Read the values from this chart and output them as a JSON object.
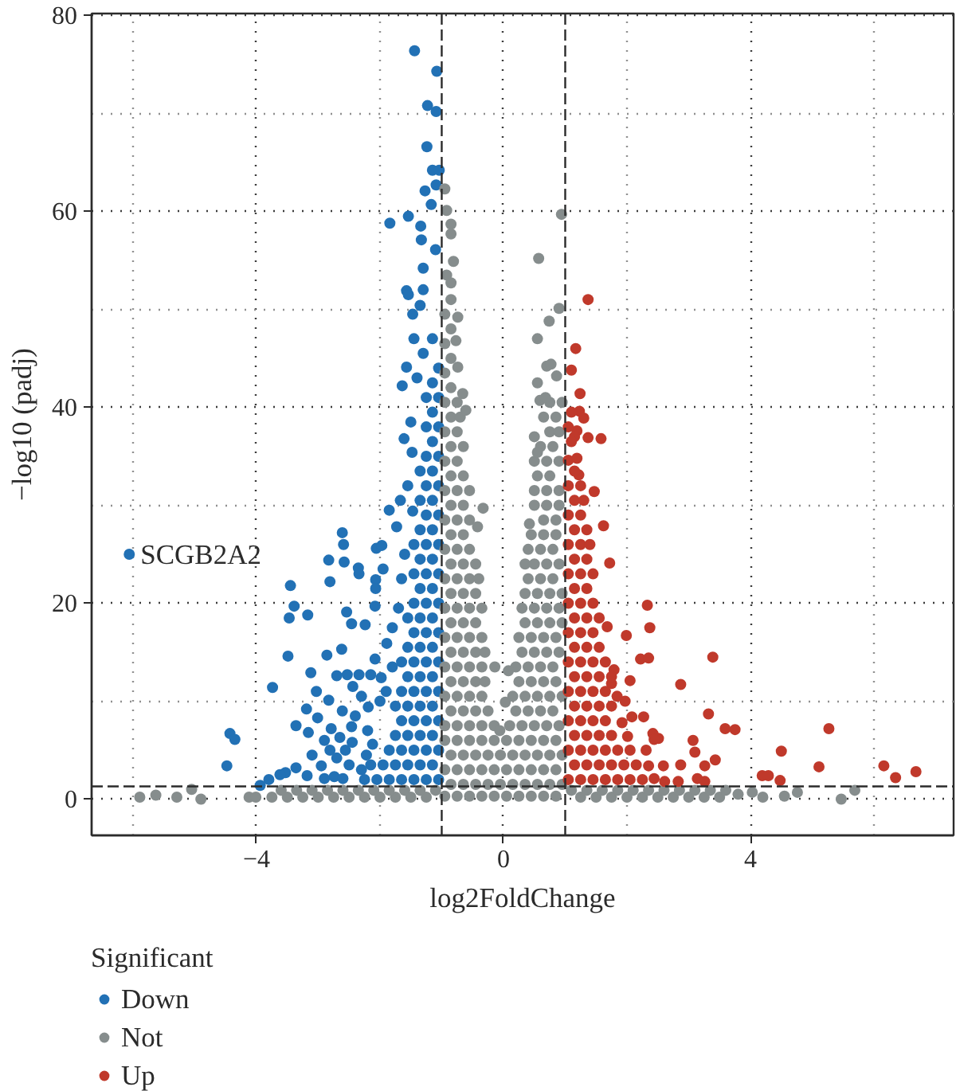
{
  "chart_data": {
    "type": "scatter",
    "xlabel": "log2FoldChange",
    "ylabel": "−log10 (padj)",
    "legend_title": "Significant",
    "legend": "bottom left",
    "marker": "circle",
    "grid": true,
    "xlim": [
      -6.67,
      7.29
    ],
    "ylim": [
      -3.7,
      80.2
    ],
    "xticks": [
      {
        "value": -6,
        "label": null
      },
      {
        "value": -4,
        "label": "−4"
      },
      {
        "value": -2,
        "label": null
      },
      0,
      {
        "value": 2,
        "label": null
      },
      4,
      {
        "value": 6,
        "label": null
      }
    ],
    "yticks": [
      0,
      {
        "value": 10,
        "label": null
      },
      20,
      {
        "value": 30,
        "label": null
      },
      40,
      {
        "value": 50,
        "label": null
      },
      60,
      {
        "value": 70,
        "label": null
      },
      80
    ],
    "ref_lines": [
      {
        "axis": "x",
        "value": -1,
        "line_style": "dashed",
        "color": "#2b2b2b"
      },
      {
        "axis": "x",
        "value": 1,
        "line_style": "dashed",
        "color": "#2b2b2b"
      },
      {
        "axis": "y",
        "value": 1.3,
        "line_style": "dashed",
        "color": "#2b2b2b"
      }
    ],
    "annotations": [
      {
        "text": "SCGB2A2",
        "x": -6.06,
        "y": 25.0
      }
    ],
    "series": [
      {
        "name": "Down",
        "color": "#2271b5",
        "x": [
          -1.44,
          -1.08,
          -1.23,
          -1.09,
          -1.24,
          -1.15,
          -1.04,
          -1.09,
          -1.27,
          -1.84,
          -1.17,
          -1.54,
          -1.34,
          -1.33,
          -1.1,
          -1.3,
          -1.57,
          -1.54,
          -1.35,
          -1.47,
          -1.57,
          -1.64,
          -6.06,
          -4.43,
          -4.35,
          -4.48,
          -3.94,
          -3.74,
          -3.49,
          -3.45,
          -3.39,
          -3.47,
          -3.17,
          -2.61,
          -2.59,
          -2.83,
          -2.58,
          -2.81,
          -2.54,
          -2.46,
          -2.24,
          -2.35,
          -2.34,
          -2.06,
          -1.97,
          -1.95,
          -2.07,
          -2.08,
          -2.07,
          -1.85,
          -1.67,
          -1.73,
          -1.47,
          -1.61,
          -1.48,
          -3.12,
          -2.86,
          -2.62,
          -2.7,
          -2.53,
          -2.34,
          -2.44,
          -3.03,
          -3.19,
          -3.36,
          -3.16,
          -3.01,
          -2.83,
          -2.61,
          -2.79,
          -2.46,
          -2.19,
          -1.98,
          -2.15,
          -2.08,
          -1.89,
          -2.81,
          -2.56,
          -2.95,
          -2.74,
          -3.18,
          -3.36,
          -3.53,
          -3.8,
          -3.62,
          -2.12,
          -2.22,
          -2.9,
          -2.65,
          -2.4,
          -2.3,
          -2.0,
          -2.2,
          -1.9,
          -1.8,
          -1.8,
          -1.7,
          -1.65,
          -1.6,
          -1.55,
          -1.5,
          -1.4,
          -1.3,
          -1.45,
          -1.3,
          -2.5,
          -2.3,
          -2.6,
          -2.9,
          -3.1,
          -2.7,
          -2.45,
          -1.05,
          -1.25,
          -1.45,
          -1.65,
          -1.85,
          -2.05,
          -2.25,
          -1.15,
          -1.35,
          -1.55,
          -1.75,
          -1.95,
          -2.15,
          -1.05,
          -1.25,
          -1.45,
          -1.65,
          -1.85,
          -1.15,
          -1.35,
          -1.55,
          -1.75,
          -1.05,
          -1.25,
          -1.45,
          -1.65,
          -1.15,
          -1.35,
          -1.55,
          -1.75,
          -1.05,
          -1.25,
          -1.45,
          -1.65,
          -1.15,
          -1.35,
          -1.55,
          -1.05,
          -1.25,
          -1.45,
          -1.65,
          -1.15,
          -1.35,
          -1.55,
          -1.05,
          -1.25,
          -1.45,
          -1.15,
          -1.35,
          -1.55,
          -1.05,
          -1.25,
          -1.45,
          -1.15,
          -1.35,
          -1.05,
          -1.25,
          -1.45,
          -1.15,
          -1.35,
          -1.05,
          -1.25,
          -1.45,
          -1.15,
          -1.35,
          -1.05,
          -1.25,
          -1.15,
          -1.35,
          -1.05,
          -1.25,
          -1.15,
          -1.35,
          -1.05,
          -1.25,
          -1.15,
          -1.05,
          -1.25,
          -1.15,
          -1.05,
          -1.25,
          -1.15,
          -1.05,
          -1.15
        ],
        "values": [
          76.4,
          74.3,
          70.8,
          70.2,
          66.6,
          64.2,
          64.2,
          62.7,
          62.1,
          58.8,
          60.7,
          59.5,
          58.5,
          57.1,
          56.1,
          54.2,
          51.9,
          51.5,
          50.4,
          49.5,
          44.1,
          42.2,
          25.0,
          6.7,
          6.1,
          3.4,
          1.4,
          11.4,
          14.6,
          21.8,
          19.7,
          18.5,
          18.8,
          27.2,
          26.0,
          24.4,
          24.2,
          22.2,
          19.1,
          17.9,
          17.8,
          23.6,
          23.0,
          25.6,
          25.9,
          23.5,
          22.4,
          19.7,
          21.5,
          29.5,
          30.5,
          27.8,
          29.4,
          36.8,
          35.4,
          12.9,
          14.7,
          15.3,
          12.6,
          12.7,
          12.7,
          11.5,
          11.0,
          9.2,
          7.5,
          6.8,
          8.3,
          10.1,
          9.0,
          7.2,
          7.4,
          9.4,
          12.4,
          12.7,
          14.3,
          15.9,
          5.0,
          5.0,
          3.4,
          2.3,
          2.4,
          3.2,
          2.7,
          2.0,
          2.5,
          5.6,
          4.5,
          6.0,
          6.3,
          8.5,
          10.5,
          10.0,
          7.0,
          11.0,
          13.5,
          17.5,
          19.5,
          22.5,
          25.0,
          32.0,
          38.5,
          43.0,
          45.5,
          47.0,
          52.0,
          3.5,
          3.0,
          2.1,
          2.1,
          4.5,
          4.2,
          5.8,
          2,
          2,
          2,
          2,
          2,
          2,
          2,
          3.5,
          3.5,
          3.5,
          3.5,
          3.5,
          3.5,
          5,
          5,
          5,
          5,
          5,
          6.5,
          6.5,
          6.5,
          6.5,
          8,
          8,
          8,
          8,
          9.5,
          9.5,
          9.5,
          9.5,
          11,
          11,
          11,
          11,
          12.5,
          12.5,
          12.5,
          14,
          14,
          14,
          14,
          15.5,
          15.5,
          15.5,
          17,
          17,
          17,
          18.5,
          18.5,
          18.5,
          20,
          20,
          20,
          21.5,
          21.5,
          23,
          23,
          23,
          24.5,
          24.5,
          26,
          26,
          26,
          27.5,
          27.5,
          29,
          29,
          30.5,
          30.5,
          32,
          32,
          33.5,
          33.5,
          35,
          35,
          36.5,
          38,
          38,
          39.5,
          41,
          41,
          42.5,
          44,
          47
        ]
      },
      {
        "name": "Not",
        "color": "#868d8d",
        "x": [
          -5.89,
          -5.63,
          -5.29,
          -5.05,
          -4.9,
          -4.12,
          -4.01,
          3.8,
          4.03,
          4.2,
          4.55,
          4.76,
          5.47,
          5.69,
          -3.75,
          -3.5,
          -3.25,
          -3.0,
          -2.75,
          -2.5,
          -2.25,
          -2.0,
          -1.75,
          -1.5,
          -1.25,
          -3.6,
          -3.35,
          -3.1,
          -2.85,
          -2.6,
          -2.35,
          -2.1,
          -1.85,
          -1.6,
          -1.35,
          -1.1,
          1.25,
          1.5,
          1.75,
          2.0,
          2.25,
          2.5,
          2.75,
          3.0,
          3.25,
          3.5,
          1.1,
          1.35,
          1.6,
          1.85,
          2.1,
          2.35,
          2.6,
          2.85,
          3.1,
          3.35,
          3.6,
          -0.95,
          -0.75,
          -0.55,
          -0.35,
          -0.15,
          0.05,
          0.25,
          0.45,
          0.65,
          0.85,
          -0.85,
          -0.65,
          -0.45,
          -0.25,
          -0.05,
          0.15,
          0.35,
          0.55,
          0.75,
          0.95,
          -0.95,
          -0.75,
          -0.55,
          -0.35,
          -0.15,
          0.05,
          0.25,
          0.45,
          0.65,
          0.85,
          -0.85,
          -0.65,
          -0.45,
          -0.25,
          -0.05,
          0.15,
          0.35,
          0.55,
          0.75,
          0.95,
          -0.95,
          -0.75,
          -0.55,
          -0.35,
          -0.15,
          0.05,
          0.25,
          0.45,
          0.65,
          0.85,
          -0.95,
          -0.75,
          -0.55,
          -0.35,
          -0.15,
          0.1,
          0.3,
          0.5,
          0.7,
          0.9,
          -0.85,
          -0.65,
          -0.45,
          -0.25,
          0.2,
          0.4,
          0.6,
          0.8,
          -0.95,
          -0.75,
          -0.55,
          -0.35,
          0.15,
          0.35,
          0.55,
          0.75,
          0.95,
          -0.85,
          -0.65,
          -0.45,
          -0.3,
          0.25,
          0.45,
          0.65,
          0.85,
          -0.95,
          -0.75,
          -0.55,
          -0.35,
          0.2,
          0.4,
          0.6,
          0.8,
          -0.85,
          -0.65,
          -0.45,
          -0.3,
          0.3,
          0.5,
          0.7,
          0.9,
          -0.95,
          -0.75,
          -0.55,
          -0.35,
          0.25,
          0.45,
          0.65,
          0.85,
          -0.85,
          -0.65,
          -0.45,
          0.35,
          0.55,
          0.75,
          0.95,
          -0.95,
          -0.75,
          -0.55,
          -0.35,
          0.3,
          0.5,
          0.7,
          0.9,
          -0.85,
          -0.65,
          -0.45,
          0.35,
          0.55,
          0.75,
          0.95,
          -0.95,
          -0.75,
          -0.55,
          -0.4,
          0.4,
          0.6,
          0.8,
          -0.85,
          -0.65,
          -0.45,
          0.35,
          0.5,
          0.7,
          0.9,
          -0.95,
          -0.75,
          -0.55,
          0.4,
          0.6,
          0.8,
          -0.85,
          -0.65,
          0.45,
          0.65,
          0.85,
          -0.95,
          -0.75,
          -0.55,
          0.65,
          0.85,
          -0.85,
          -0.65,
          0.5,
          0.7,
          0.9,
          -0.95,
          -0.75,
          -0.55,
          0.5,
          0.7,
          0.9,
          -0.85,
          -0.65,
          0.55,
          0.75,
          -0.95,
          -0.75,
          0.5,
          0.7,
          0.9,
          -0.85,
          -0.65,
          0.6,
          0.8,
          -0.95,
          -0.75,
          0.75,
          0.9,
          -0.85,
          -0.7,
          0.65,
          0.85,
          -0.95,
          -0.75,
          0.75,
          0.95,
          -0.85,
          -0.95,
          -0.85,
          -0.95,
          -0.85,
          -0.95,
          -0.85,
          -0.33,
          -0.42,
          -0.95,
          -0.92,
          -0.85,
          -0.85,
          -0.81,
          -0.92,
          -0.85,
          -0.74,
          -0.77,
          -0.74,
          -0.66,
          -0.61,
          -0.14,
          0.08,
          0.03,
          -0.06,
          0.94,
          0.57,
          0.9,
          0.74,
          0.55,
          0.7,
          0.77,
          0.86,
          0.55,
          0.59,
          0.68,
          0.5,
          0.55,
          0.42
        ],
        "values": [
          0.2,
          0.4,
          0.2,
          1.0,
          0.0,
          0.2,
          0.2,
          0.5,
          0.7,
          0.2,
          0.3,
          0.7,
          0.0,
          0.9,
          0.2,
          0.2,
          0.2,
          0.2,
          0.2,
          0.2,
          0.2,
          0.2,
          0.2,
          0.2,
          0.2,
          0.9,
          0.9,
          0.9,
          0.9,
          0.9,
          0.9,
          0.9,
          0.9,
          0.9,
          0.9,
          0.9,
          0.2,
          0.2,
          0.2,
          0.2,
          0.2,
          0.2,
          0.2,
          0.2,
          0.2,
          0.2,
          0.9,
          0.9,
          0.9,
          0.9,
          0.9,
          0.9,
          0.9,
          0.9,
          0.9,
          0.9,
          0.9,
          0.3,
          0.3,
          0.3,
          0.3,
          0.3,
          0.3,
          0.3,
          0.3,
          0.3,
          0.3,
          1.5,
          1.5,
          1.5,
          1.5,
          1.5,
          1.5,
          1.5,
          1.5,
          1.5,
          1.5,
          3,
          3,
          3,
          3,
          3,
          3,
          3,
          3,
          3,
          3,
          4.5,
          4.5,
          4.5,
          4.5,
          4.5,
          4.5,
          4.5,
          4.5,
          4.5,
          4.5,
          6,
          6,
          6,
          6,
          6,
          6,
          6,
          6,
          6,
          6,
          7.5,
          7.5,
          7.5,
          7.5,
          7.5,
          7.5,
          7.5,
          7.5,
          7.5,
          7.5,
          9,
          9,
          9,
          9,
          9,
          9,
          9,
          9,
          10.5,
          10.5,
          10.5,
          10.5,
          10.5,
          10.5,
          10.5,
          10.5,
          10.5,
          12,
          12,
          12,
          12,
          12,
          12,
          12,
          12,
          13.5,
          13.5,
          13.5,
          13.5,
          13.5,
          13.5,
          13.5,
          13.5,
          15,
          15,
          15,
          15,
          15,
          15,
          15,
          15,
          16.5,
          16.5,
          16.5,
          16.5,
          16.5,
          16.5,
          16.5,
          16.5,
          18,
          18,
          18,
          18,
          18,
          18,
          18,
          19.5,
          19.5,
          19.5,
          19.5,
          19.5,
          19.5,
          19.5,
          19.5,
          21,
          21,
          21,
          21,
          21,
          21,
          21,
          22.5,
          22.5,
          22.5,
          22.5,
          22.5,
          22.5,
          22.5,
          24,
          24,
          24,
          24,
          24,
          24,
          24,
          25.5,
          25.5,
          25.5,
          25.5,
          25.5,
          25.5,
          27,
          27,
          27,
          27,
          27,
          28.5,
          28.5,
          28.5,
          28.5,
          28.5,
          30,
          30,
          30,
          30,
          30,
          31.5,
          31.5,
          31.5,
          31.5,
          31.5,
          31.5,
          33,
          33,
          33,
          33,
          34.5,
          34.5,
          34.5,
          34.5,
          34.5,
          36,
          36,
          36,
          36,
          37.5,
          37.5,
          37.5,
          37.5,
          39,
          39,
          39,
          39,
          40.5,
          40.5,
          40.5,
          40.5,
          42,
          43.5,
          45,
          46.5,
          48,
          49.5,
          51,
          29.7,
          27.8,
          62.3,
          60.1,
          58.7,
          57.7,
          54.9,
          53.5,
          52.7,
          49.2,
          46.8,
          44.1,
          41.4,
          39.7,
          13.5,
          13.1,
          9.9,
          7.0,
          59.7,
          55.2,
          50.1,
          48.8,
          47.0,
          44.2,
          44.4,
          43.2,
          42.5,
          40.7,
          41.0,
          37.0,
          35.4,
          28.1
        ]
      },
      {
        "name": "Up",
        "color": "#c0392b",
        "x": [
          1.24,
          1.23,
          1.3,
          1.19,
          1.37,
          1.58,
          1.15,
          1.05,
          1.19,
          1.22,
          1.47,
          1.62,
          1.72,
          2.33,
          2.37,
          1.68,
          1.99,
          3.39,
          2.22,
          2.35,
          2.87,
          2.05,
          1.75,
          1.97,
          2.08,
          2.27,
          3.32,
          3.59,
          3.75,
          5.27,
          2.42,
          2.51,
          3.07,
          4.5,
          3.1,
          3.43,
          3.26,
          5.11,
          6.16,
          6.35,
          6.68,
          4.19,
          4.29,
          4.48,
          3.14,
          3.26,
          2.59,
          2.87,
          2.61,
          2.83,
          2.35,
          2.44,
          2.44,
          2.31,
          2.01,
          1.92,
          1.84,
          1.79,
          1.37,
          1.17,
          1.1,
          1.05,
          1.25,
          1.45,
          1.65,
          1.85,
          2.05,
          2.25,
          1.15,
          1.35,
          1.55,
          1.75,
          1.95,
          2.15,
          1.05,
          1.25,
          1.45,
          1.65,
          1.85,
          2.05,
          1.15,
          1.35,
          1.55,
          1.75,
          1.05,
          1.25,
          1.45,
          1.65,
          1.15,
          1.35,
          1.55,
          1.75,
          1.05,
          1.25,
          1.45,
          1.65,
          1.15,
          1.35,
          1.55,
          1.75,
          1.05,
          1.25,
          1.45,
          1.65,
          1.15,
          1.35,
          1.55,
          1.05,
          1.25,
          1.45,
          1.15,
          1.35,
          1.55,
          1.05,
          1.25,
          1.45,
          1.15,
          1.35,
          1.05,
          1.25,
          1.45,
          1.15,
          1.35,
          1.05,
          1.25,
          1.4,
          1.15,
          1.35,
          1.05,
          1.25,
          1.15,
          1.3,
          1.05,
          1.25,
          1.15,
          1.1,
          1.05,
          1.1
        ],
        "values": [
          41.4,
          39.6,
          38.9,
          37.6,
          36.9,
          36.8,
          37.0,
          34.6,
          34.8,
          33.1,
          31.4,
          27.9,
          24.1,
          19.8,
          17.5,
          17.6,
          16.7,
          14.5,
          14.3,
          14.4,
          11.7,
          12.1,
          11.8,
          10.0,
          8.4,
          8.4,
          8.7,
          7.2,
          7.1,
          7.2,
          6.7,
          6.2,
          6.0,
          4.9,
          4.8,
          4.0,
          3.4,
          3.3,
          3.4,
          2.2,
          2.8,
          2.4,
          2.4,
          1.9,
          2.1,
          1.8,
          3.4,
          3.5,
          1.8,
          1.8,
          3.4,
          2.1,
          6.1,
          5.0,
          6.4,
          7.8,
          10.5,
          13.2,
          51.0,
          46.0,
          43.8,
          2,
          2,
          2,
          2,
          2,
          2,
          2,
          3.5,
          3.5,
          3.5,
          3.5,
          3.5,
          3.5,
          5,
          5,
          5,
          5,
          5,
          5,
          6.5,
          6.5,
          6.5,
          6.5,
          8,
          8,
          8,
          8,
          9.5,
          9.5,
          9.5,
          9.5,
          11,
          11,
          11,
          11,
          12.5,
          12.5,
          12.5,
          12.5,
          14,
          14,
          14,
          14,
          15.5,
          15.5,
          15.5,
          17,
          17,
          17,
          18.5,
          18.5,
          18.5,
          20,
          20,
          20,
          21.5,
          21.5,
          23,
          23,
          23,
          24.5,
          24.5,
          26,
          26,
          26,
          27.5,
          27.5,
          29,
          29,
          30.5,
          30.5,
          32,
          32,
          33.5,
          36.5,
          38,
          39.5
        ]
      }
    ]
  }
}
